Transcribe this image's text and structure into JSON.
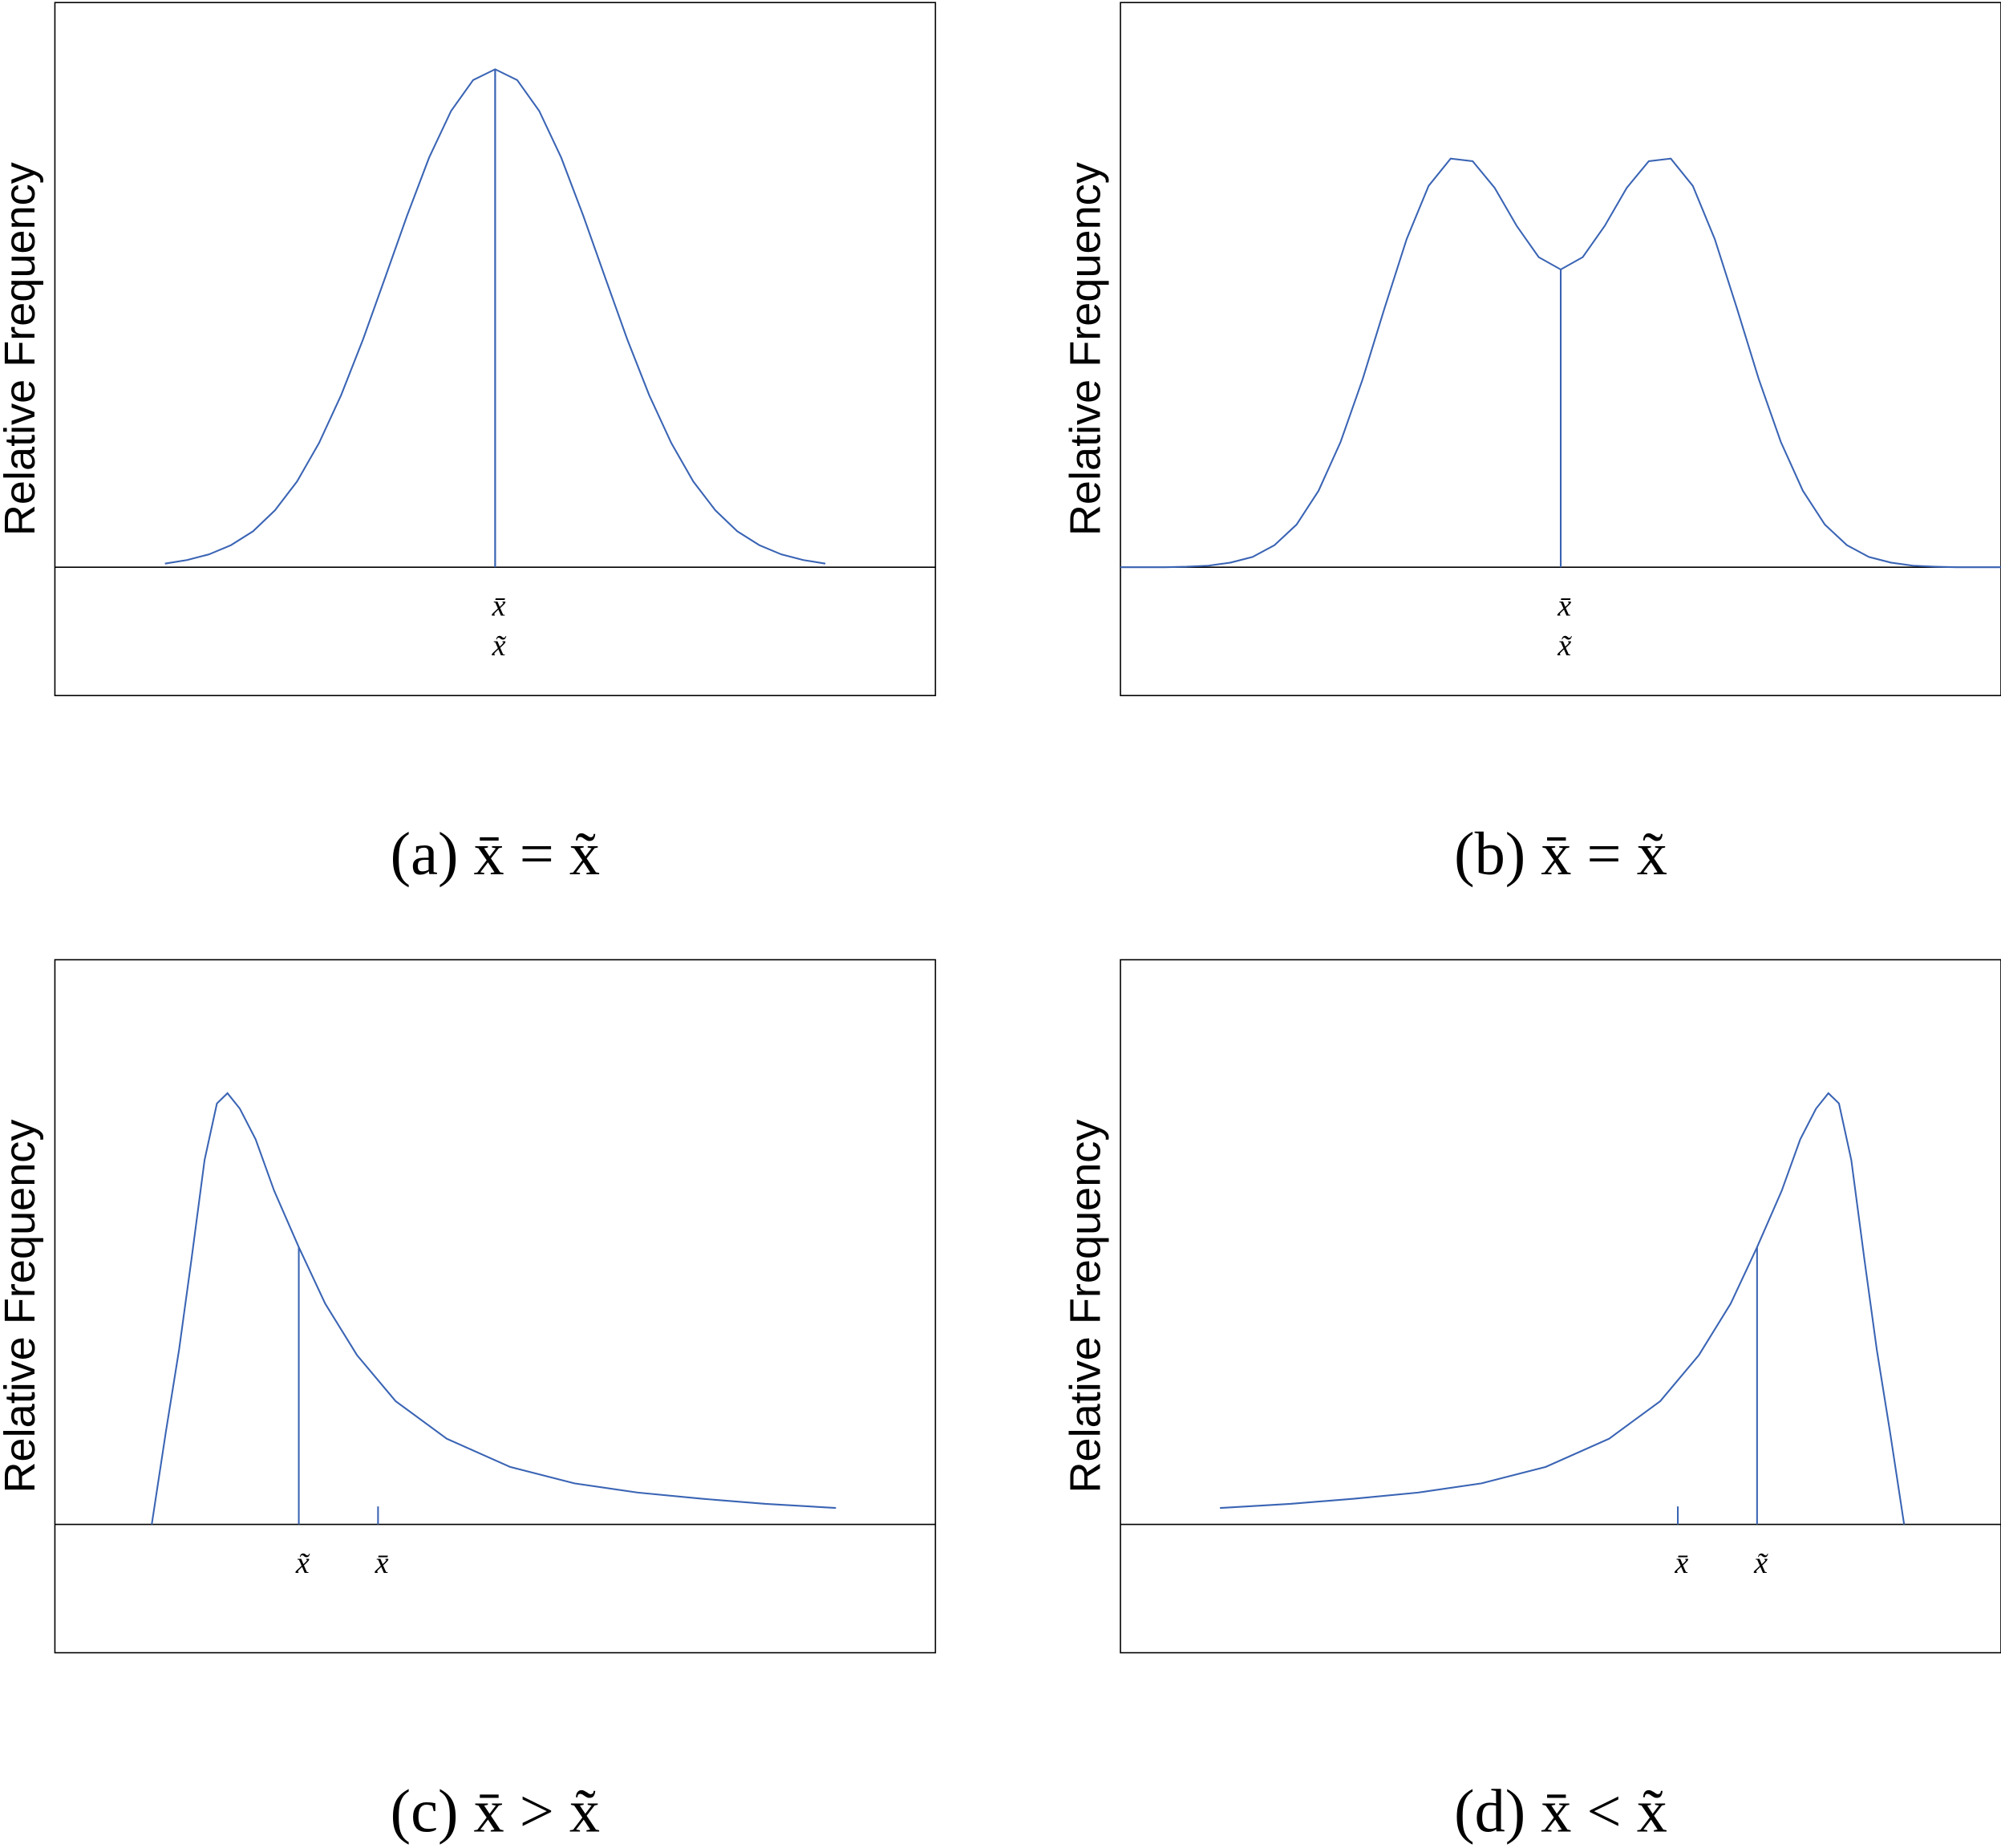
{
  "chart_data": [
    {
      "type": "line",
      "ylabel": "Relative Frequency",
      "caption": "(a) x̄ = x̃",
      "color": "#3a64b4",
      "xlim": [
        0,
        10
      ],
      "ylim": [
        -0.25,
        1.1
      ],
      "x": [
        1.25,
        1.5,
        1.75,
        2,
        2.25,
        2.5,
        2.75,
        3,
        3.25,
        3.5,
        3.75,
        4,
        4.25,
        4.5,
        4.75,
        5,
        5.25,
        5.5,
        5.75,
        6,
        6.25,
        6.5,
        6.75,
        7,
        7.25,
        7.5,
        7.75,
        8,
        8.25,
        8.5,
        8.75
      ],
      "values": [
        0.007,
        0.014,
        0.025,
        0.043,
        0.07,
        0.111,
        0.167,
        0.242,
        0.335,
        0.444,
        0.564,
        0.685,
        0.798,
        0.889,
        0.949,
        0.97,
        0.949,
        0.889,
        0.798,
        0.685,
        0.564,
        0.444,
        0.335,
        0.242,
        0.167,
        0.111,
        0.07,
        0.043,
        0.025,
        0.014,
        0.007
      ],
      "markers": [
        {
          "label": "x̄",
          "x": 5,
          "height": 0.97
        },
        {
          "label": "x̃",
          "x": 5,
          "height": 0.97
        }
      ]
    },
    {
      "type": "line",
      "ylabel": "Relative Frequency",
      "caption": "(b) x̄ = x̃",
      "color": "#3a64b4",
      "xlim": [
        0,
        10
      ],
      "ylim": [
        -0.25,
        1.1
      ],
      "x": [
        0,
        0.25,
        0.5,
        0.75,
        1,
        1.25,
        1.5,
        1.75,
        2,
        2.25,
        2.5,
        2.75,
        3,
        3.25,
        3.5,
        3.75,
        4,
        4.25,
        4.5,
        4.75,
        5,
        5.25,
        5.5,
        5.75,
        6,
        6.25,
        6.5,
        6.75,
        7,
        7.25,
        7.5,
        7.75,
        8,
        8.25,
        8.5,
        8.75,
        9,
        9.25,
        9.5,
        9.75,
        10
      ],
      "values": [
        0,
        0,
        0,
        0.001,
        0.003,
        0.009,
        0.02,
        0.043,
        0.083,
        0.149,
        0.244,
        0.366,
        0.505,
        0.639,
        0.743,
        0.796,
        0.791,
        0.739,
        0.665,
        0.604,
        0.58,
        0.604,
        0.665,
        0.739,
        0.791,
        0.796,
        0.743,
        0.639,
        0.505,
        0.366,
        0.244,
        0.149,
        0.083,
        0.043,
        0.02,
        0.009,
        0.003,
        0.001,
        0,
        0,
        0
      ],
      "markers": [
        {
          "label": "x̄",
          "x": 5,
          "height": 0.58
        },
        {
          "label": "x̃",
          "x": 5,
          "height": 0.58
        }
      ]
    },
    {
      "type": "line",
      "ylabel": "Relative Frequency",
      "caption": "(c) x̄ > x̃",
      "color": "#3a64b4",
      "xlim": [
        0,
        10
      ],
      "ylim": [
        -0.25,
        1.1
      ],
      "x": [
        1.1,
        1.26,
        1.41,
        1.55,
        1.7,
        1.84,
        1.96,
        2.1,
        2.28,
        2.49,
        2.77,
        3.07,
        3.43,
        3.87,
        4.45,
        5.17,
        5.9,
        6.62,
        7.35,
        8.07,
        8.87
      ],
      "values": [
        0,
        0.18,
        0.34,
        0.515,
        0.71,
        0.82,
        0.84,
        0.81,
        0.75,
        0.65,
        0.54,
        0.43,
        0.33,
        0.24,
        0.167,
        0.112,
        0.08,
        0.062,
        0.05,
        0.04,
        0.032
      ],
      "markers": [
        {
          "label": "x̃",
          "x": 2.77,
          "height": 0.54
        },
        {
          "label": "x̄",
          "x": 3.67,
          "height": 0.035
        }
      ]
    },
    {
      "type": "line",
      "ylabel": "Relative Frequency",
      "caption": "(d) x̄ < x̃",
      "color": "#3a64b4",
      "xlim": [
        0,
        10
      ],
      "ylim": [
        -0.25,
        1.1
      ],
      "x": [
        1.13,
        1.93,
        2.65,
        3.38,
        4.1,
        4.83,
        5.55,
        6.13,
        6.57,
        6.93,
        7.23,
        7.51,
        7.72,
        7.9,
        8.04,
        8.16,
        8.3,
        8.45,
        8.59,
        8.74,
        8.9
      ],
      "values": [
        0.032,
        0.04,
        0.05,
        0.062,
        0.08,
        0.112,
        0.167,
        0.24,
        0.33,
        0.43,
        0.54,
        0.65,
        0.75,
        0.81,
        0.84,
        0.82,
        0.71,
        0.515,
        0.34,
        0.18,
        0
      ],
      "markers": [
        {
          "label": "x̄",
          "x": 6.33,
          "height": 0.035
        },
        {
          "label": "x̃",
          "x": 7.23,
          "height": 0.54
        }
      ]
    }
  ]
}
